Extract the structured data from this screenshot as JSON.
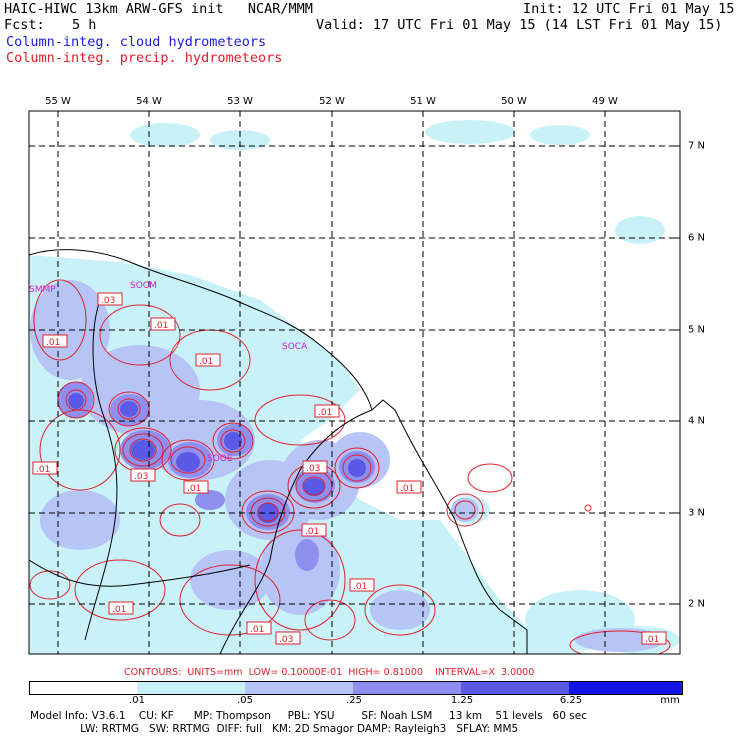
{
  "header": {
    "title_left": "HAIC-HIWC 13km ARW-GFS init   NCAR/MMM",
    "init": "Init: 12 UTC Fri 01 May 15",
    "fcst_label": "Fcst:",
    "fcst_value": "5 h",
    "valid": "Valid: 17 UTC Fri 01 May 15 (14 LST Fri 01 May 15)",
    "field_cloud": "Column-integ. cloud hydrometeors",
    "field_precip": "Column-integ. precip. hydrometeors"
  },
  "map": {
    "lon_labels": [
      "55 W",
      "54 W",
      "53 W",
      "52 W",
      "51 W",
      "50 W",
      "49 W"
    ],
    "lat_labels": [
      "7 N",
      "6 N",
      "5 N",
      "4 N",
      "3 N",
      "2 N"
    ],
    "station_labels": [
      "SMMP",
      "SOCM",
      "SOCA",
      "SOOE"
    ],
    "contour_labels": [
      ".03",
      ".01",
      ".01",
      ".01",
      ".01",
      ".01",
      ".03",
      ".01",
      ".03",
      ".01",
      ".01",
      ".01",
      ".01",
      ".01",
      ".03",
      ".01"
    ]
  },
  "colors": {
    "cloud_fill_1": "#c9f2f8",
    "cloud_fill_2": "#b6c4f6",
    "cloud_fill_3": "#8f8ff0",
    "cloud_fill_4": "#6a6ae8",
    "cloud_fill_5": "#3a3ae6",
    "cloud_fill_6": "#1010e0",
    "precip_contour": "#e0202a",
    "coast": "#000000"
  },
  "contour_info": {
    "contours": "CONTOURS:",
    "units": "UNITS=mm",
    "low": "LOW= 0.10000E-01",
    "high": "HIGH= 0.81000",
    "interval": "INTERVAL=X  3.0000"
  },
  "colorbar": {
    "ticks": [
      ".01",
      ".05",
      ".25",
      "1.25",
      "6.25"
    ],
    "unit": "mm"
  },
  "footer": {
    "line1": "Model Info: V3.6.1    CU: KF      MP: Thompson     PBL: YSU        SF: Noah LSM     13 km    51 levels   60 sec",
    "line2": "               LW: RRTMG   SW: RRTMG  DIFF: full   KM: 2D Smagor DAMP: Rayleigh3   SFLAY: MM5"
  }
}
